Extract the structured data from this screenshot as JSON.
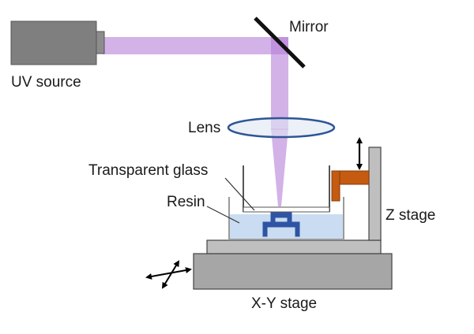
{
  "labels": {
    "uv_source": "UV source",
    "mirror": "Mirror",
    "lens": "Lens",
    "transparent_glass": "Transparent glass",
    "resin": "Resin",
    "z_stage": "Z stage",
    "xy_stage": "X-Y stage"
  },
  "colors": {
    "uv_source_body": "#7f7f7f",
    "beam": "#b57fd9",
    "lens_outline": "#2e5597",
    "lens_fill": "#dfe6f2",
    "resin_fill": "#c9dcf1",
    "printed_part": "#2e54a3",
    "z_arm": "#c55a11",
    "stage_gray": "#a6a6a6"
  }
}
